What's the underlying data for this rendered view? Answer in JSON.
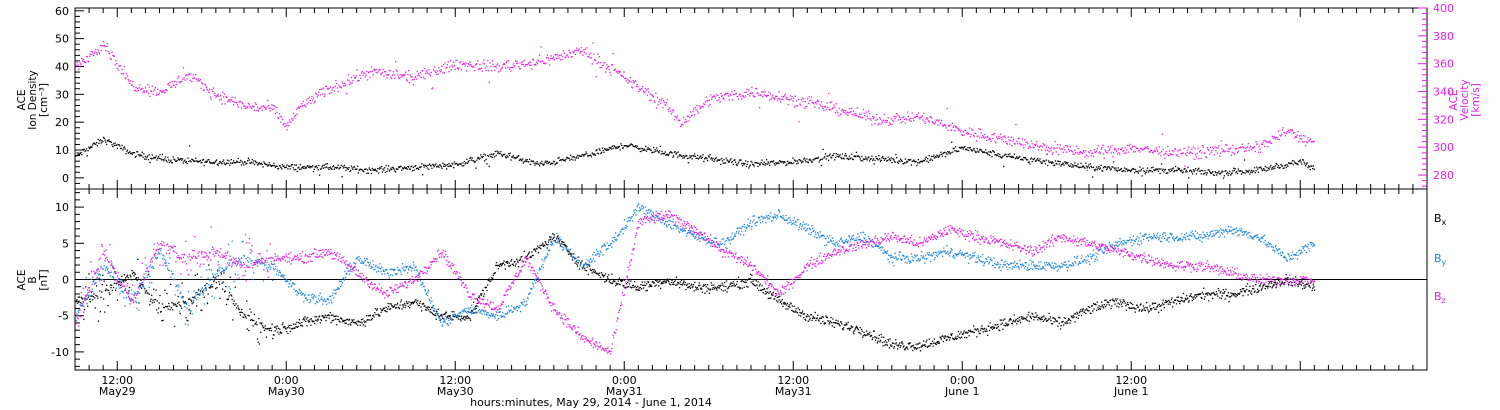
{
  "chart_data": [
    {
      "type": "scatter",
      "panel": "top",
      "ylabel_left": [
        "ACE",
        "Ion Density",
        "[cm⁻³]"
      ],
      "ylabel_right": [
        "ACE",
        "Velocity",
        "[km/s]"
      ],
      "ylim_left": [
        -4,
        61
      ],
      "ylim_right": [
        270,
        400
      ],
      "yticks_left": [
        "0",
        "10",
        "20",
        "30",
        "40",
        "50",
        "60"
      ],
      "yticks_right": [
        "280",
        "300",
        "320",
        "340",
        "360",
        "380",
        "400"
      ],
      "series": [
        {
          "axis": "left",
          "color": "#000000",
          "x_hours": [
            0,
            2,
            4,
            6,
            9,
            12,
            15,
            18,
            21,
            24,
            27,
            30,
            33,
            36,
            39,
            42,
            45,
            48,
            51,
            54,
            57,
            60,
            63,
            66,
            69,
            72,
            75,
            78,
            81,
            84,
            87,
            88
          ],
          "values": [
            8,
            14,
            9,
            7,
            6,
            6,
            4,
            4,
            3,
            4,
            5,
            9,
            5,
            8,
            12,
            9,
            7,
            5,
            6,
            8,
            7,
            6,
            11,
            8,
            6,
            4,
            3,
            3,
            2,
            3,
            6,
            3
          ]
        },
        {
          "axis": "right",
          "color": "#e620e6",
          "x_hours": [
            0,
            2,
            3,
            4,
            6,
            8,
            10,
            12,
            14,
            15,
            16,
            18,
            21,
            24,
            27,
            30,
            33,
            36,
            39,
            42,
            43,
            45,
            48,
            50,
            52,
            54,
            57,
            60,
            63,
            66,
            69,
            72,
            75,
            78,
            81,
            84,
            86,
            88
          ],
          "values": [
            358,
            375,
            360,
            345,
            340,
            352,
            338,
            330,
            328,
            315,
            330,
            342,
            355,
            350,
            360,
            358,
            362,
            370,
            350,
            330,
            318,
            335,
            340,
            337,
            332,
            328,
            320,
            322,
            312,
            306,
            300,
            296,
            300,
            296,
            298,
            300,
            312,
            303
          ]
        }
      ]
    },
    {
      "type": "scatter",
      "panel": "bottom",
      "ylabel_left": [
        "ACE",
        "B",
        "[nT]"
      ],
      "ylim": [
        -12.5,
        12.5
      ],
      "yticks": [
        "-10",
        "-5",
        "0",
        "5",
        "10"
      ],
      "legend": [
        {
          "label": "Bx",
          "sub": "x",
          "color": "#000000"
        },
        {
          "label": "By",
          "sub": "y",
          "color": "#1e88dc"
        },
        {
          "label": "Bz",
          "sub": "z",
          "color": "#e620e6"
        }
      ],
      "series": [
        {
          "name": "Bx",
          "color": "#000000",
          "x_hours": [
            0,
            2,
            4,
            6,
            8,
            10,
            12,
            14,
            16,
            18,
            20,
            22,
            24,
            26,
            28,
            30,
            32,
            34,
            36,
            38,
            40,
            42,
            44,
            46,
            48,
            50,
            52,
            54,
            56,
            58,
            60,
            62,
            64,
            66,
            68,
            70,
            72,
            74,
            76,
            78,
            80,
            82,
            84,
            86,
            88
          ],
          "values": [
            -3,
            -2,
            1,
            -4,
            -3,
            0,
            -5,
            -7,
            -6,
            -5,
            -6,
            -4,
            -3,
            -5,
            -5,
            2,
            3,
            6,
            2,
            0,
            -1,
            0,
            -1,
            -1,
            0,
            -3,
            -5,
            -6,
            -7,
            -9,
            -9,
            -8,
            -7,
            -6,
            -5,
            -6,
            -4,
            -3,
            -4,
            -3,
            -2,
            -2,
            -1,
            0,
            -1
          ]
        },
        {
          "name": "By",
          "color": "#1e88dc",
          "x_hours": [
            0,
            2,
            4,
            6,
            8,
            10,
            12,
            14,
            16,
            18,
            20,
            22,
            24,
            26,
            28,
            30,
            32,
            34,
            36,
            38,
            40,
            42,
            44,
            46,
            48,
            50,
            52,
            54,
            56,
            58,
            60,
            62,
            64,
            66,
            68,
            70,
            72,
            74,
            76,
            78,
            80,
            82,
            84,
            86,
            88
          ],
          "values": [
            -5,
            2,
            -3,
            4,
            -4,
            1,
            3,
            2,
            -2,
            -3,
            3,
            1,
            2,
            -6,
            -4,
            -5,
            -3,
            6,
            2,
            5,
            10,
            8,
            6,
            5,
            8,
            9,
            7,
            5,
            6,
            3,
            3,
            4,
            3,
            2,
            2,
            2,
            3,
            5,
            6,
            6,
            6,
            7,
            6,
            3,
            5
          ]
        },
        {
          "name": "Bz",
          "color": "#e620e6",
          "x_hours": [
            0,
            2,
            4,
            6,
            8,
            10,
            12,
            14,
            16,
            18,
            20,
            22,
            24,
            26,
            28,
            30,
            32,
            34,
            36,
            38,
            40,
            42,
            44,
            46,
            48,
            50,
            52,
            54,
            56,
            58,
            60,
            62,
            64,
            66,
            68,
            70,
            72,
            74,
            76,
            78,
            80,
            82,
            84,
            86,
            88
          ],
          "values": [
            -6,
            4,
            -3,
            5,
            3,
            4,
            2,
            3,
            3,
            4,
            1,
            -2,
            0,
            4,
            -2,
            -4,
            3,
            -4,
            -8,
            -10,
            8,
            9,
            7,
            4,
            2,
            -2,
            2,
            4,
            5,
            6,
            5,
            7,
            6,
            5,
            4,
            6,
            5,
            4,
            3,
            2,
            2,
            1,
            0,
            0,
            0
          ]
        }
      ]
    }
  ],
  "x_axis": {
    "xlim_hours": [
      0,
      96
    ],
    "title": "hours:minutes, May 29, 2014 - June  1, 2014",
    "major_ticks": [
      {
        "hours": 3,
        "time": "12:00",
        "date": "May29"
      },
      {
        "hours": 15,
        "time": "0:00",
        "date": "May30"
      },
      {
        "hours": 27,
        "time": "12:00",
        "date": "May30"
      },
      {
        "hours": 39,
        "time": "0:00",
        "date": "May31"
      },
      {
        "hours": 51,
        "time": "12:00",
        "date": "May31"
      },
      {
        "hours": 63,
        "time": "0:00",
        "date": "June 1"
      },
      {
        "hours": 75,
        "time": "12:00",
        "date": "June 1"
      }
    ]
  }
}
